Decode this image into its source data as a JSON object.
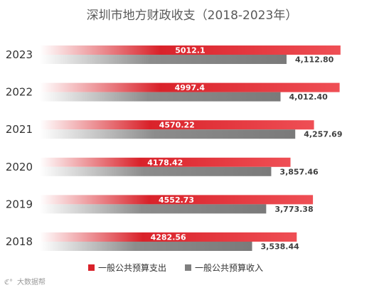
{
  "chart_data": {
    "type": "bar",
    "orientation": "horizontal",
    "title": "深圳市地方财政收支（2018-2023年）",
    "categories": [
      "2023",
      "2022",
      "2021",
      "2020",
      "2019",
      "2018"
    ],
    "series": [
      {
        "name": "一般公共预算支出",
        "values": [
          5012.1,
          4997.4,
          4570.22,
          4178.42,
          4552.73,
          4282.56
        ],
        "labels": [
          "5012.1",
          "4997.4",
          "4570.22",
          "4178.42",
          "4552.73",
          "4282.56"
        ],
        "color": "#d9222a"
      },
      {
        "name": "一般公共预算收入",
        "values": [
          4112.8,
          4012.4,
          4257.69,
          3857.46,
          3773.38,
          3538.44
        ],
        "labels": [
          "4,112.80",
          "4,012.40",
          "4,257.69",
          "3,857.46",
          "3,773.38",
          "3,538.44"
        ],
        "color": "#7f7f7f"
      }
    ],
    "xlim": [
      0,
      5500
    ],
    "grid": false,
    "legend": "bottom"
  },
  "watermark": "大数据帮"
}
